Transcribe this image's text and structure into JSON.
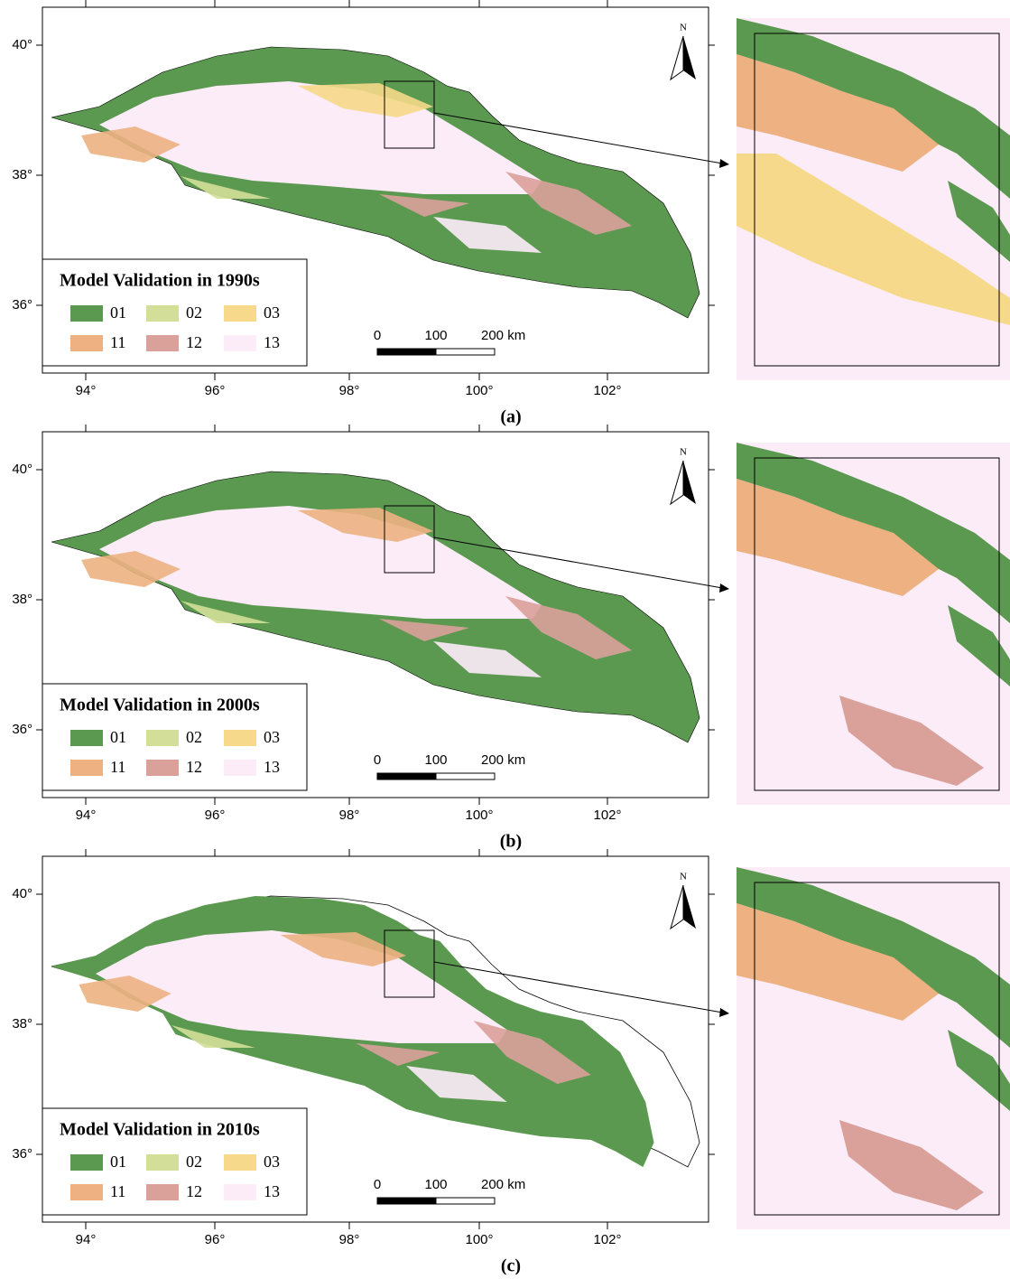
{
  "panels": [
    {
      "caption": "(a)",
      "legend_title": "Model Validation in 1990s"
    },
    {
      "caption": "(b)",
      "legend_title": "Model Validation in 2000s"
    },
    {
      "caption": "(c)",
      "legend_title": "Model Validation in 2010s"
    }
  ],
  "legend": [
    {
      "label": "01",
      "color": "#5b9950"
    },
    {
      "label": "02",
      "color": "#d3df98"
    },
    {
      "label": "03",
      "color": "#f6d98a"
    },
    {
      "label": "11",
      "color": "#edb182"
    },
    {
      "label": "12",
      "color": "#daa09a"
    },
    {
      "label": "13",
      "color": "#fcecf8"
    }
  ],
  "x_ticks": [
    "94°",
    "96°",
    "98°",
    "100°",
    "102°"
  ],
  "y_ticks": [
    "40°",
    "38°",
    "36°"
  ],
  "scale_labels": [
    "0",
    "100",
    "200 km"
  ],
  "north": "N"
}
